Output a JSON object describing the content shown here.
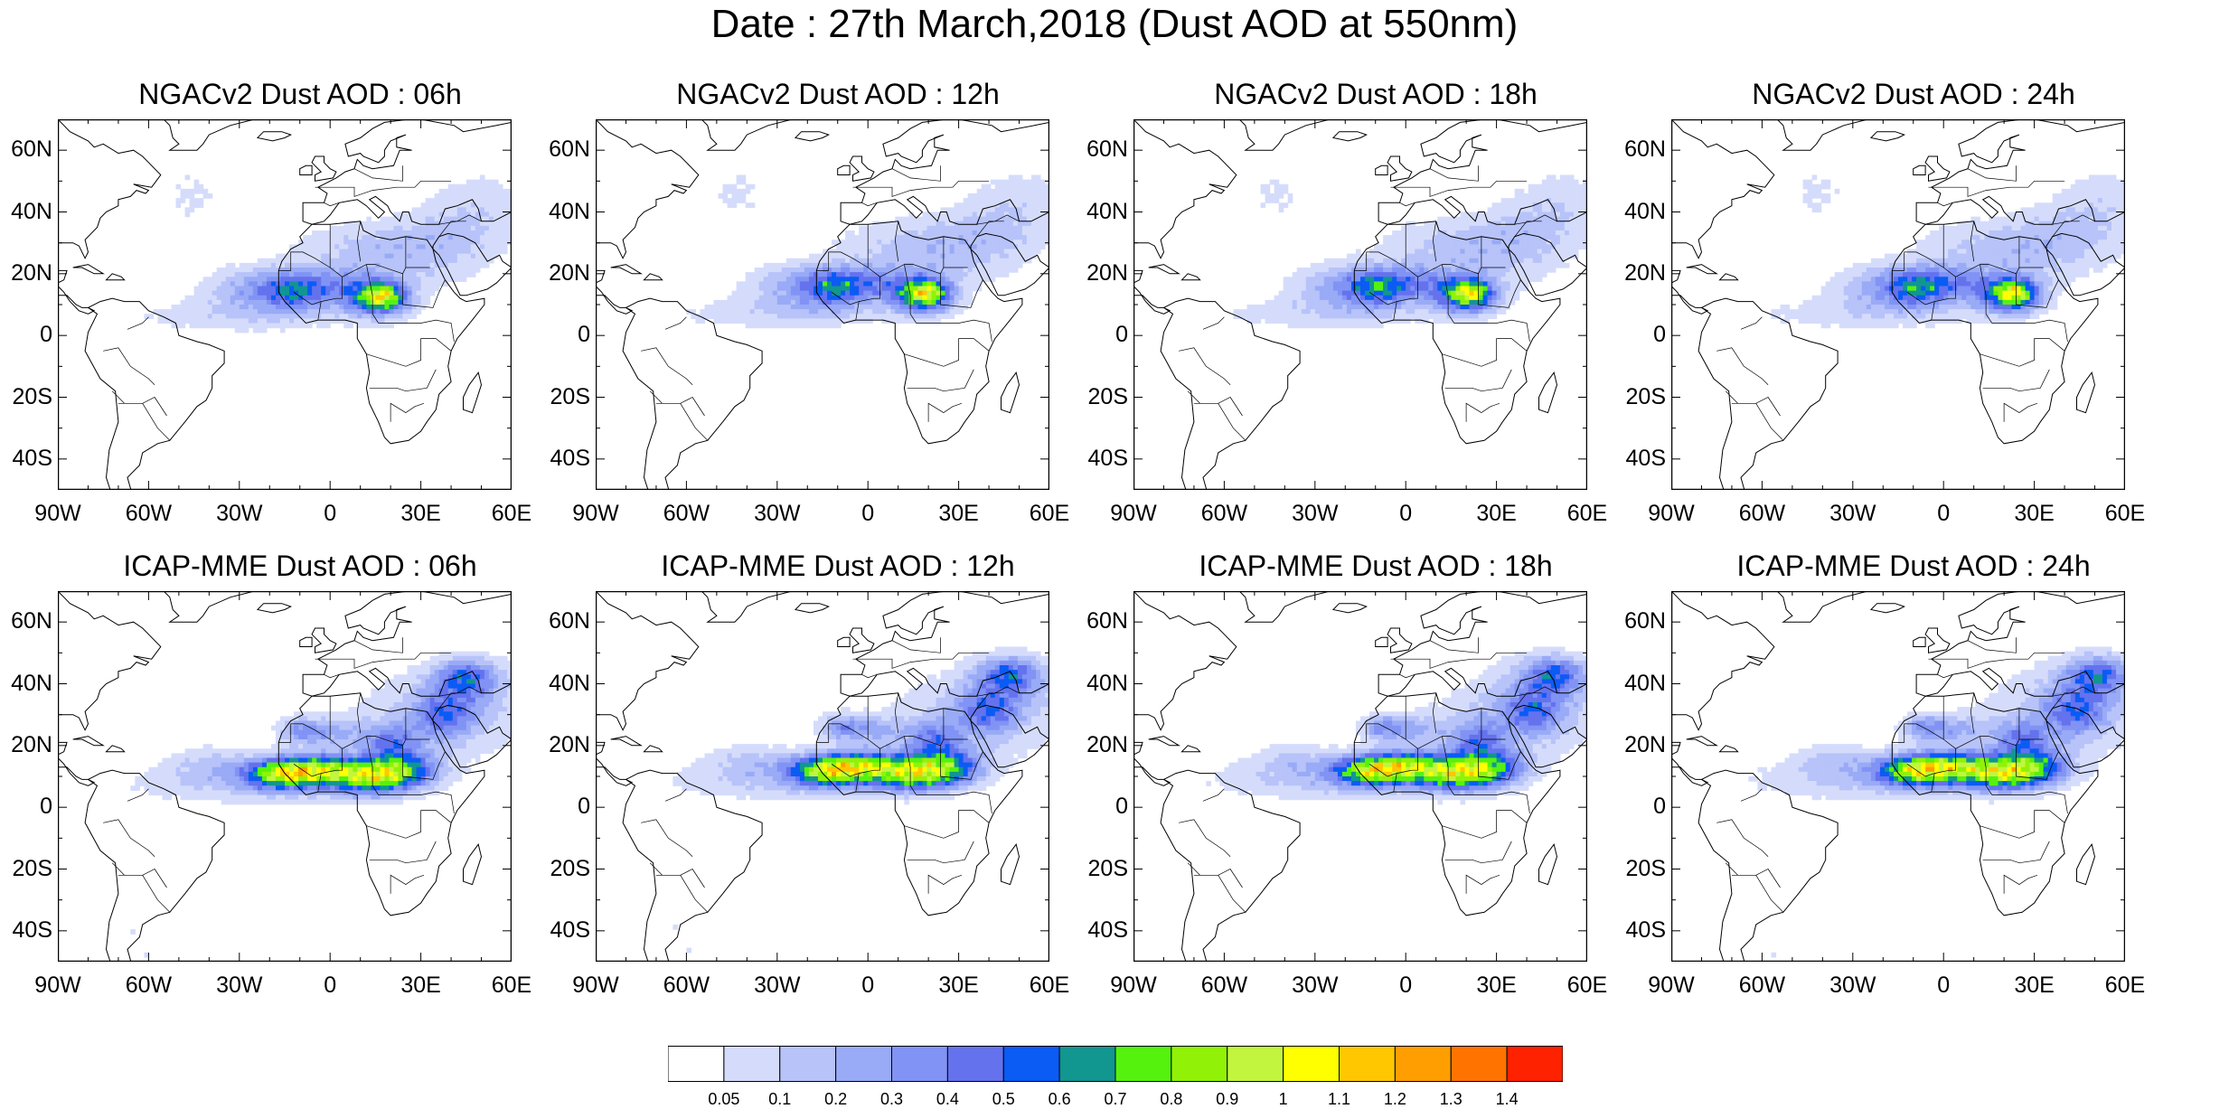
{
  "figure_title": "Date : 27th March,2018 (Dust AOD at 550nm)",
  "panels": [
    {
      "title": "NGACv2 Dust AOD : 06h",
      "model": "NGACv2",
      "hour": "06h"
    },
    {
      "title": "NGACv2 Dust AOD : 12h",
      "model": "NGACv2",
      "hour": "12h"
    },
    {
      "title": "NGACv2 Dust AOD : 18h",
      "model": "NGACv2",
      "hour": "18h"
    },
    {
      "title": "NGACv2 Dust AOD : 24h",
      "model": "NGACv2",
      "hour": "24h"
    },
    {
      "title": "ICAP-MME Dust AOD : 06h",
      "model": "ICAP-MME",
      "hour": "06h"
    },
    {
      "title": "ICAP-MME Dust AOD : 12h",
      "model": "ICAP-MME",
      "hour": "12h"
    },
    {
      "title": "ICAP-MME Dust AOD : 18h",
      "model": "ICAP-MME",
      "hour": "18h"
    },
    {
      "title": "ICAP-MME Dust AOD : 24h",
      "model": "ICAP-MME",
      "hour": "24h"
    }
  ],
  "lat_ticks": [
    "60N",
    "40N",
    "20N",
    "0",
    "20S",
    "40S"
  ],
  "lon_ticks": [
    "90W",
    "60W",
    "30W",
    "0",
    "30E",
    "60E"
  ],
  "map_extent": {
    "lon": [
      -90,
      60
    ],
    "lat": [
      -50,
      70
    ]
  },
  "colorbar": {
    "labels": [
      "0.05",
      "0.1",
      "0.2",
      "0.3",
      "0.4",
      "0.5",
      "0.6",
      "0.7",
      "0.8",
      "0.9",
      "1",
      "1.1",
      "1.2",
      "1.3",
      "1.4"
    ],
    "colors": [
      "#ffffff",
      "#d5dcfb",
      "#b7c3f9",
      "#99aaf6",
      "#8193f4",
      "#6472ee",
      "#0b5bf5",
      "#119690",
      "#55f20e",
      "#91f208",
      "#c2f53e",
      "#ffff00",
      "#ffc700",
      "#ff9e00",
      "#ff7400",
      "#ff2200"
    ]
  },
  "colors": {
    "coast": "#000000",
    "frame": "#000000"
  }
}
